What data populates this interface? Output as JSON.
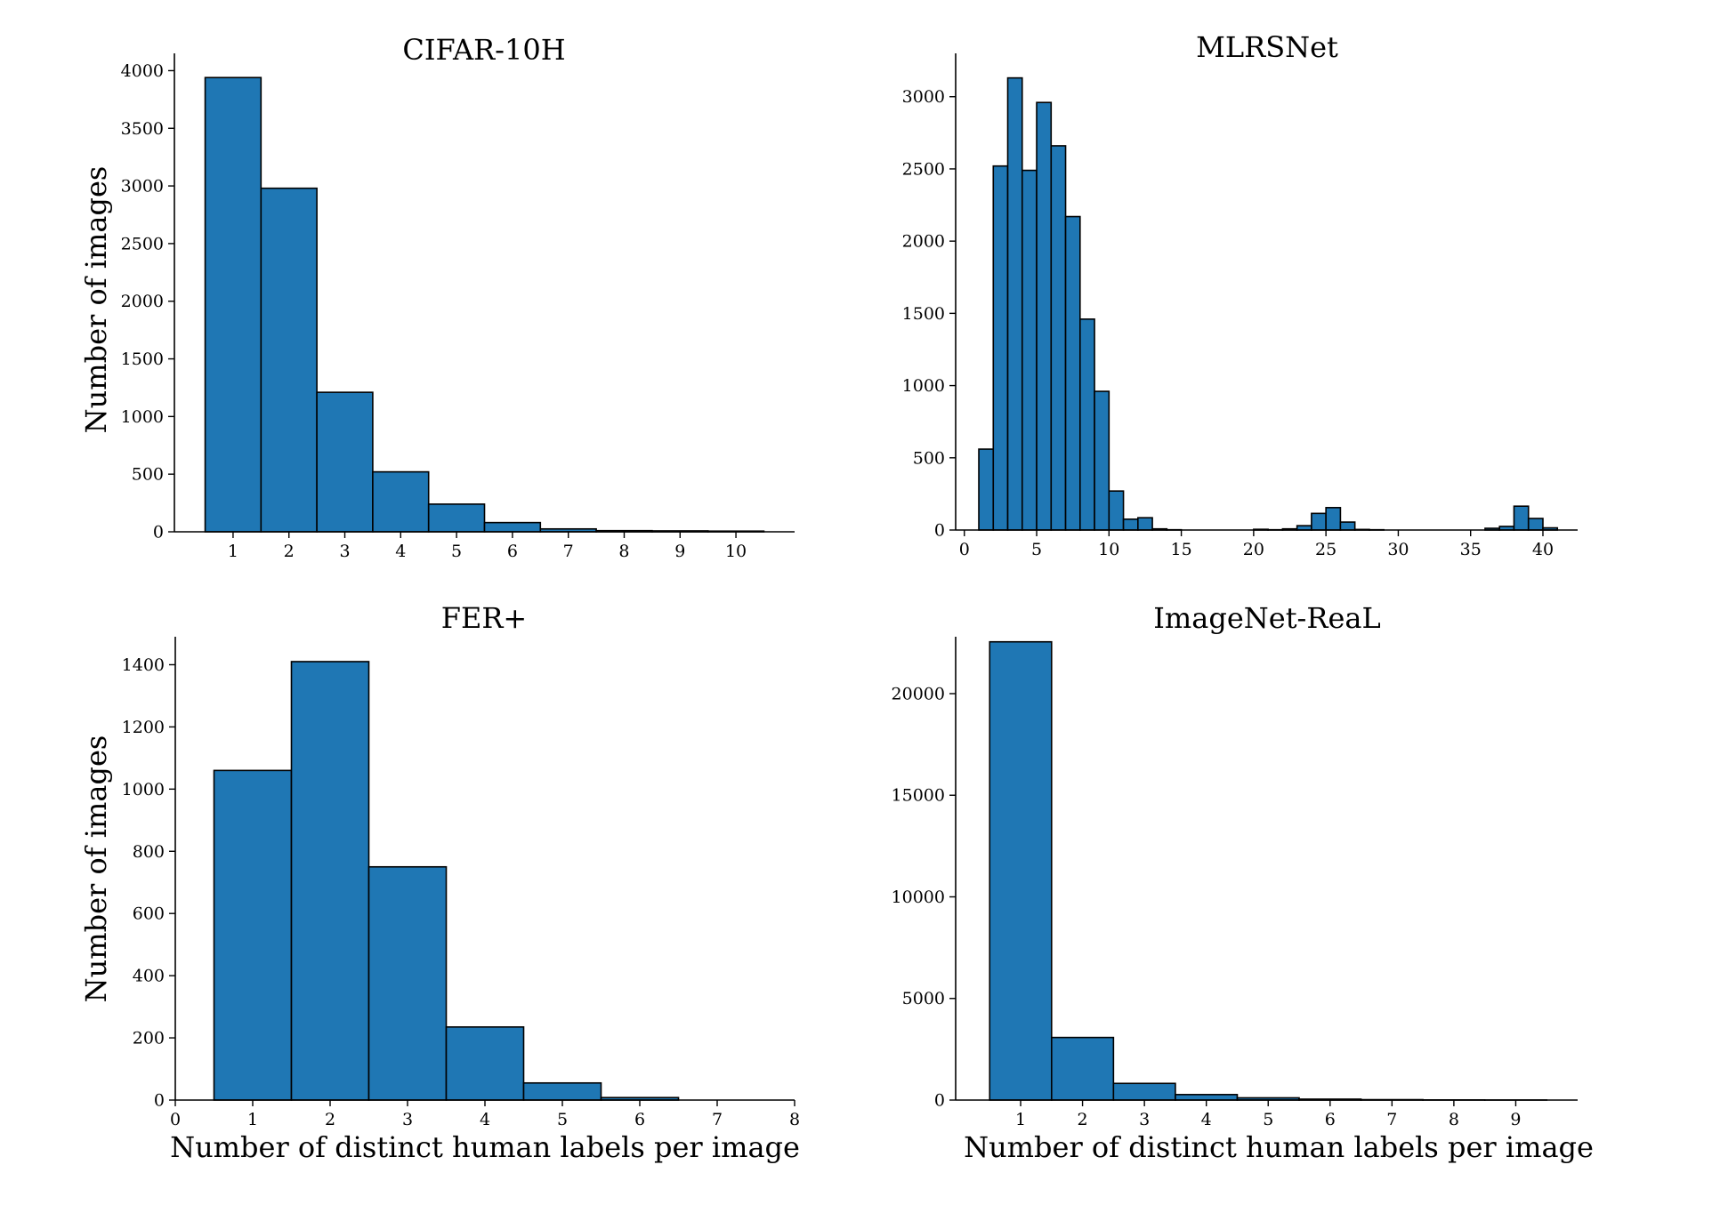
{
  "colors": {
    "bar_fill": "#1f77b4",
    "bar_edge": "#000000",
    "axis": "#000000",
    "background": "#ffffff"
  },
  "chart_data": [
    {
      "type": "bar",
      "title": "CIFAR-10H",
      "xlabel": "",
      "ylabel": "Number of images",
      "categories": [
        1,
        2,
        3,
        4,
        5,
        6,
        7,
        8,
        9,
        10
      ],
      "values": [
        3940,
        2980,
        1210,
        520,
        240,
        80,
        25,
        10,
        8,
        6
      ],
      "xlim": [
        -0.05,
        11.05
      ],
      "ylim": [
        0,
        4150
      ],
      "xticks": [
        1,
        2,
        3,
        4,
        5,
        6,
        7,
        8,
        9,
        10
      ],
      "xtick_labels": [
        "1",
        "2",
        "3",
        "4",
        "5",
        "6",
        "7",
        "8",
        "9",
        "10"
      ],
      "yticks": [
        0,
        500,
        1000,
        1500,
        2000,
        2500,
        3000,
        3500,
        4000
      ],
      "ytick_labels": [
        "0",
        "500",
        "1000",
        "1500",
        "2000",
        "2500",
        "3000",
        "3500",
        "4000"
      ],
      "grid": false
    },
    {
      "type": "bar",
      "title": "MLRSNet",
      "xlabel": "",
      "ylabel": "",
      "bin_width": 1,
      "categories": [
        1,
        2,
        3,
        4,
        5,
        6,
        7,
        8,
        9,
        10,
        11,
        12,
        13,
        14,
        15,
        16,
        17,
        18,
        19,
        20,
        21,
        22,
        23,
        24,
        25,
        26,
        27,
        28,
        29,
        30,
        31,
        32,
        33,
        34,
        35,
        36,
        37,
        38,
        39,
        40
      ],
      "values": [
        560,
        2520,
        3130,
        2490,
        2960,
        2660,
        2170,
        1460,
        960,
        270,
        75,
        85,
        8,
        2,
        0,
        0,
        0,
        0,
        0,
        5,
        2,
        8,
        30,
        115,
        155,
        55,
        4,
        2,
        0,
        0,
        0,
        0,
        0,
        0,
        0,
        12,
        25,
        165,
        80,
        15
      ],
      "xlim": [
        -0.6,
        42.4
      ],
      "ylim": [
        0,
        3300
      ],
      "xticks": [
        0,
        5,
        10,
        15,
        20,
        25,
        30,
        35,
        40
      ],
      "xtick_labels": [
        "0",
        "5",
        "10",
        "15",
        "20",
        "25",
        "30",
        "35",
        "40"
      ],
      "yticks": [
        0,
        500,
        1000,
        1500,
        2000,
        2500,
        3000
      ],
      "ytick_labels": [
        "0",
        "500",
        "1000",
        "1500",
        "2000",
        "2500",
        "3000"
      ],
      "grid": false
    },
    {
      "type": "bar",
      "title": "FER+",
      "xlabel": "Number of distinct human labels per image",
      "ylabel": "Number of images",
      "categories": [
        1,
        2,
        3,
        4,
        5,
        6
      ],
      "values": [
        1060,
        1410,
        750,
        235,
        55,
        8
      ],
      "xlim": [
        0,
        8
      ],
      "ylim": [
        0,
        1490
      ],
      "xticks": [
        0,
        1,
        2,
        3,
        4,
        5,
        6,
        7,
        8
      ],
      "xtick_labels": [
        "0",
        "1",
        "2",
        "3",
        "4",
        "5",
        "6",
        "7",
        "8"
      ],
      "yticks": [
        0,
        200,
        400,
        600,
        800,
        1000,
        1200,
        1400
      ],
      "ytick_labels": [
        "0",
        "200",
        "400",
        "600",
        "800",
        "1000",
        "1200",
        "1400"
      ],
      "grid": false
    },
    {
      "type": "bar",
      "title": "ImageNet-ReaL",
      "xlabel": "Number of distinct human labels per image",
      "ylabel": "",
      "categories": [
        1,
        2,
        3,
        4,
        5,
        6,
        7,
        8,
        9
      ],
      "values": [
        22550,
        3080,
        820,
        270,
        110,
        45,
        20,
        8,
        3
      ],
      "xlim": [
        -0.05,
        10.0
      ],
      "ylim": [
        0,
        22800
      ],
      "xticks": [
        1,
        2,
        3,
        4,
        5,
        6,
        7,
        8,
        9
      ],
      "xtick_labels": [
        "1",
        "2",
        "3",
        "4",
        "5",
        "6",
        "7",
        "8",
        "9"
      ],
      "yticks": [
        0,
        5000,
        10000,
        15000,
        20000
      ],
      "ytick_labels": [
        "0",
        "5000",
        "10000",
        "15000",
        "20000"
      ],
      "grid": false
    }
  ]
}
